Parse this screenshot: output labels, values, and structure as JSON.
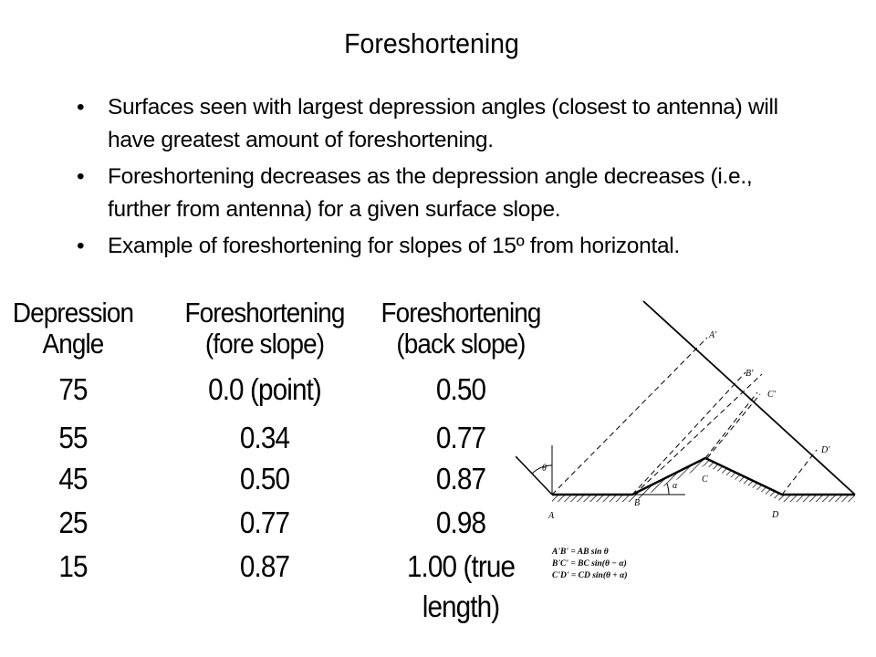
{
  "title": "Foreshortening",
  "bullets": [
    "Surfaces seen with largest depression angles (closest to antenna) will have greatest amount of foreshortening.",
    "Foreshortening decreases as the depression angle decreases (i.e., further from antenna) for a given surface slope.",
    "Example of foreshortening for slopes of 15º from horizontal."
  ],
  "bullet_symbol": "•",
  "table": {
    "headers": [
      [
        "Depression",
        "Angle"
      ],
      [
        "Foreshortening",
        "(fore slope)"
      ],
      [
        "Foreshortening",
        "(back slope)"
      ]
    ],
    "rows": [
      [
        "75",
        "0.0 (point)",
        "0.50"
      ],
      [
        "55",
        "0.34",
        "0.77"
      ],
      [
        "45",
        "0.50",
        "0.87"
      ],
      [
        "25",
        "0.77",
        "0.98"
      ],
      [
        "15",
        "0.87",
        "1.00 (true"
      ]
    ],
    "last_row_extra": "length)"
  },
  "diagram": {
    "labels": {
      "A_prime": "A'",
      "B_prime": "B'",
      "C_prime": "C'",
      "D_prime": "D'",
      "A": "A",
      "B": "B",
      "C": "C",
      "D": "D",
      "theta": "θ",
      "alpha": "α"
    },
    "equations": [
      "A'B' = AB sin θ",
      "B'C' = BC sin(θ − α)",
      "C'D' = CD sin(θ + α)"
    ]
  }
}
